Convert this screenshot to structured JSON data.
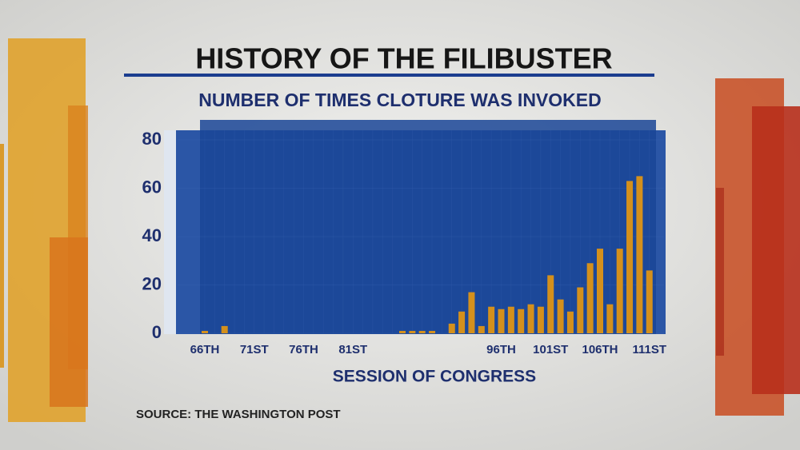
{
  "chart_data": {
    "type": "bar",
    "title": "HISTORY OF THE FILIBUSTER",
    "subtitle": "NUMBER OF TIMES CLOTURE WAS INVOKED",
    "x_label": "SESSION OF CONGRESS",
    "source": "SOURCE: THE WASHINGTON POST",
    "categories": [
      "66TH",
      null,
      null,
      null,
      null,
      "71ST",
      null,
      null,
      null,
      null,
      "76TH",
      null,
      null,
      null,
      null,
      "81ST",
      null,
      null,
      null,
      null,
      null,
      null,
      null,
      null,
      null,
      null,
      null,
      null,
      null,
      null,
      "96TH",
      null,
      null,
      null,
      null,
      "101ST",
      null,
      null,
      null,
      null,
      "106TH",
      null,
      null,
      null,
      null,
      "111ST"
    ],
    "values": [
      1,
      0,
      3,
      0,
      0,
      0,
      0,
      0,
      0,
      0,
      0,
      0,
      0,
      0,
      0,
      0,
      0,
      0,
      0,
      0,
      1,
      1,
      1,
      1,
      0,
      4,
      9,
      17,
      3,
      11,
      10,
      11,
      10,
      12,
      11,
      24,
      14,
      9,
      19,
      29,
      35,
      12,
      35,
      63,
      65,
      26
    ],
    "color": "#d4901c",
    "ylim": [
      0,
      80
    ],
    "yticks": [
      0,
      20,
      40,
      60,
      80
    ]
  }
}
